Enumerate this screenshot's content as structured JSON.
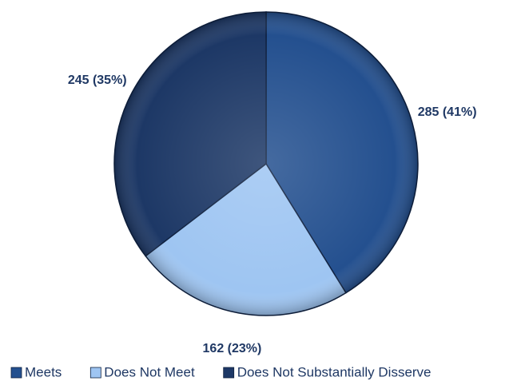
{
  "chart_data": {
    "type": "pie",
    "categories": [
      "Meets",
      "Does Not Meet",
      "Does Not Substantially Disserve"
    ],
    "values": [
      285,
      162,
      245
    ],
    "value_labels": [
      "285 (41%)",
      "162 (23%)",
      "245 (35%)"
    ],
    "colors": [
      "#24508f",
      "#9ec5f2",
      "#1d3866"
    ],
    "legend": "bottom"
  }
}
